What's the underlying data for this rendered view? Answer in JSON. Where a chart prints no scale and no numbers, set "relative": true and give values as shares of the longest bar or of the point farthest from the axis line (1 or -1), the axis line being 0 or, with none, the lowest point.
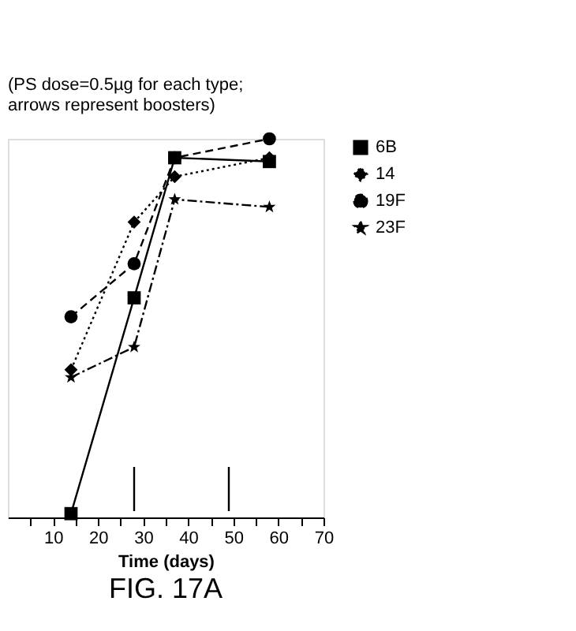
{
  "chart_data": {
    "type": "line",
    "relative": true,
    "xlabel": "Time (days)",
    "xlim": [
      0,
      70
    ],
    "xticks": [
      {
        "value": 5,
        "label": null
      },
      10,
      {
        "value": 15,
        "label": null
      },
      20,
      {
        "value": 25,
        "label": null
      },
      30,
      {
        "value": 35,
        "label": null
      },
      40,
      {
        "value": 45,
        "label": null
      },
      50,
      {
        "value": 55,
        "label": null
      },
      60,
      {
        "value": 65,
        "label": null
      },
      70
    ],
    "grid": false,
    "legend": "right",
    "series": [
      {
        "name": "6B",
        "color": "#000000",
        "marker": "square",
        "line_style": "solid",
        "x": [
          14,
          28,
          37,
          58
        ],
        "values": [
          0.01,
          0.58,
          0.95,
          0.94
        ]
      },
      {
        "name": "14",
        "color": "#000000",
        "marker": "diamond",
        "line_style": "dotted",
        "x": [
          14,
          28,
          37,
          58
        ],
        "values": [
          0.39,
          0.78,
          0.9,
          0.95
        ]
      },
      {
        "name": "19F",
        "color": "#000000",
        "marker": "circle",
        "line_style": "dashed",
        "x": [
          14,
          28,
          37,
          58
        ],
        "values": [
          0.53,
          0.67,
          0.95,
          1.0
        ]
      },
      {
        "name": "23F",
        "color": "#000000",
        "marker": "star",
        "line_style": "dashdot",
        "x": [
          14,
          28,
          37,
          58
        ],
        "values": [
          0.37,
          0.45,
          0.84,
          0.82
        ]
      }
    ],
    "ref_lines": [
      {
        "axis": "x",
        "value": 28,
        "line_style": "solid"
      },
      {
        "axis": "x",
        "value": 49,
        "line_style": "solid"
      }
    ],
    "annotations": [
      "(PS dose=0.5µg for each type; arrows represent boosters)",
      "FIG. 17A"
    ]
  }
}
